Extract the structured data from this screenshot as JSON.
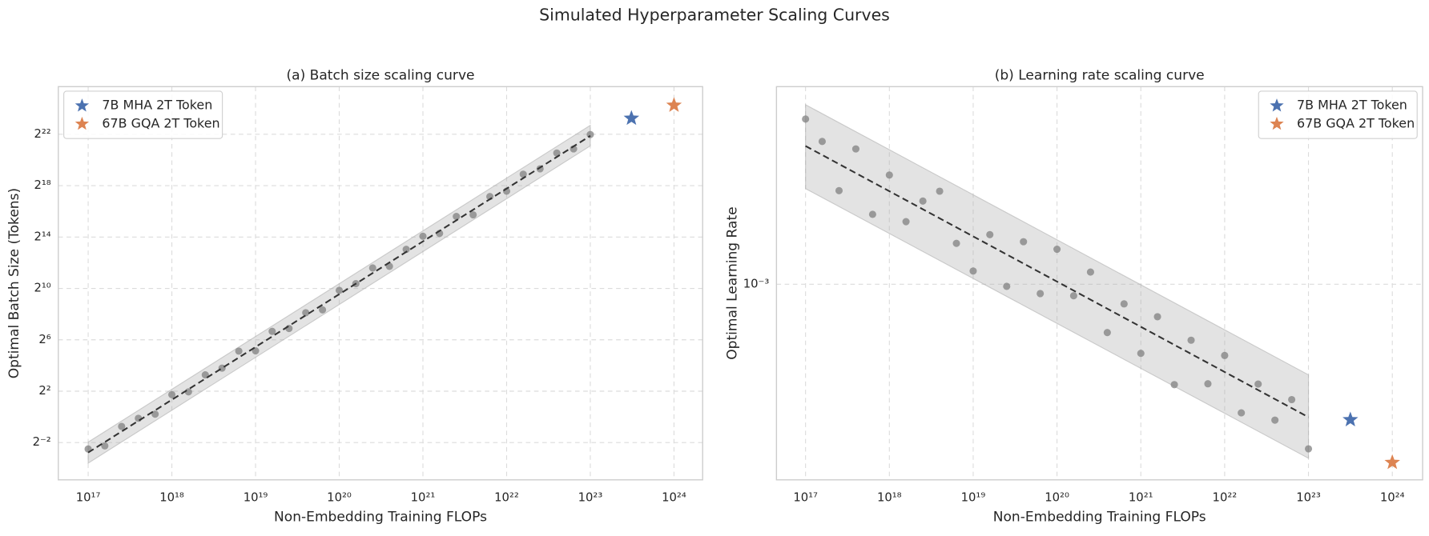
{
  "title": "Simulated Hyperparameter Scaling Curves",
  "chart_data": [
    {
      "type": "scatter",
      "title": "(a) Batch size scaling curve",
      "x_label": "Non-Embedding Training FLOPs",
      "y_label": "Optimal Batch Size (Tokens)",
      "xlog": true,
      "ylog": true,
      "grid": true,
      "legend": "upper left",
      "xlim": [
        4.4e+16,
        2.2e+24
      ],
      "ylim": [
        0.0335,
        54700000.0
      ],
      "xticks": [
        {
          "value": 1e+17,
          "label": "10¹⁷"
        },
        {
          "value": 1e+18,
          "label": "10¹⁸"
        },
        {
          "value": 1e+19,
          "label": "10¹⁹"
        },
        {
          "value": 1e+20,
          "label": "10²⁰"
        },
        {
          "value": 1e+21,
          "label": "10²¹"
        },
        {
          "value": 1e+22,
          "label": "10²²"
        },
        {
          "value": 1e+23,
          "label": "10²³"
        },
        {
          "value": 1e+24,
          "label": "10²⁴"
        }
      ],
      "yticks": [
        {
          "value": 0.25,
          "label": "2⁻²"
        },
        {
          "value": 4,
          "label": "2²"
        },
        {
          "value": 64,
          "label": "2⁶"
        },
        {
          "value": 1024,
          "label": "2¹⁰"
        },
        {
          "value": 16384,
          "label": "2¹⁴"
        },
        {
          "value": 262144,
          "label": "2¹⁸"
        },
        {
          "value": 4194304,
          "label": "2²²"
        }
      ],
      "points": {
        "color": "#808080",
        "x": [
          1e+17,
          1.58e+17,
          2.51e+17,
          3.98e+17,
          6.31e+17,
          1e+18,
          1.58e+18,
          2.51e+18,
          3.98e+18,
          6.31e+18,
          1e+19,
          1.58e+19,
          2.51e+19,
          3.98e+19,
          6.31e+19,
          1e+20,
          1.58e+20,
          2.51e+20,
          3.98e+20,
          6.31e+20,
          1e+21,
          1.58e+21,
          2.51e+21,
          3.98e+21,
          6.31e+21,
          1e+22,
          1.58e+22,
          2.51e+22,
          3.98e+22,
          6.31e+22,
          1e+23
        ],
        "y": [
          0.177,
          0.209,
          0.599,
          0.927,
          1.16,
          3.32,
          3.86,
          9.65,
          13.9,
          34.8,
          35.3,
          101,
          118,
          276,
          322,
          923,
          1323,
          3082,
          3373,
          8420,
          17080,
          19900,
          49670,
          54350,
          145300,
          194600,
          485800,
          650000,
          1524000,
          1902000,
          4130000
        ]
      },
      "fit": {
        "color": "#333333",
        "x": [
          1e+17,
          1e+23
        ],
        "y": [
          0.146,
          3850000
        ]
      },
      "band": {
        "color": "#b0b0b0",
        "x": [
          1e+17,
          1e+23
        ],
        "lower": [
          0.0825,
          2240000
        ],
        "upper": [
          0.257,
          6800000
        ]
      },
      "series": [
        {
          "name": "7B MHA 2T Token",
          "color": "#4c72b0",
          "x": [
            3.1e+23
          ],
          "y": [
            9900000
          ]
        },
        {
          "name": "67B GQA 2T Token",
          "color": "#dd8452",
          "x": [
            1e+24
          ],
          "y": [
            20000000
          ]
        }
      ]
    },
    {
      "type": "scatter",
      "title": "(b) Learning rate scaling curve",
      "x_label": "Non-Embedding Training FLOPs",
      "y_label": "Optimal Learning Rate",
      "xlog": true,
      "ylog": true,
      "grid": true,
      "legend": "upper right",
      "xlim": [
        4.5e+16,
        2.3e+24
      ],
      "ylim": [
        0.000187,
        0.00544
      ],
      "xticks": [
        {
          "value": 1e+17,
          "label": "10¹⁷"
        },
        {
          "value": 1e+18,
          "label": "10¹⁸"
        },
        {
          "value": 1e+19,
          "label": "10¹⁹"
        },
        {
          "value": 1e+20,
          "label": "10²⁰"
        },
        {
          "value": 1e+21,
          "label": "10²¹"
        },
        {
          "value": 1e+22,
          "label": "10²²"
        },
        {
          "value": 1e+23,
          "label": "10²³"
        },
        {
          "value": 1e+24,
          "label": "10²⁴"
        }
      ],
      "yticks": [
        {
          "value": 0.001,
          "label": "10⁻³"
        }
      ],
      "points": {
        "color": "#808080",
        "x": [
          1e+17,
          1.58e+17,
          2.51e+17,
          3.98e+17,
          6.31e+17,
          1e+18,
          1.58e+18,
          2.51e+18,
          3.98e+18,
          6.31e+18,
          1e+19,
          1.58e+19,
          2.51e+19,
          3.98e+19,
          6.31e+19,
          1e+20,
          1.58e+20,
          2.51e+20,
          3.98e+20,
          6.31e+20,
          1e+21,
          1.58e+21,
          2.51e+21,
          3.98e+21,
          6.31e+21,
          1e+22,
          1.58e+22,
          2.51e+22,
          3.98e+22,
          6.31e+22,
          1e+23
        ],
        "y": [
          0.00412,
          0.0034,
          0.00223,
          0.00319,
          0.00182,
          0.00255,
          0.00171,
          0.00204,
          0.00222,
          0.00142,
          0.00112,
          0.00153,
          0.000982,
          0.00144,
          0.000923,
          0.00135,
          0.000906,
          0.00111,
          0.000661,
          0.000845,
          0.000553,
          0.000757,
          0.000423,
          0.000619,
          0.000426,
          0.000543,
          0.000332,
          0.000425,
          0.000312,
          0.000372,
          0.000244
        ]
      },
      "fit": {
        "color": "#333333",
        "x": [
          1e+17,
          1e+23
        ],
        "y": [
          0.00327,
          0.00032
        ]
      },
      "band": {
        "color": "#b0b0b0",
        "x": [
          1e+17,
          1e+23
        ],
        "lower": [
          0.00227,
          0.000225
        ],
        "upper": [
          0.00466,
          0.00046
        ]
      },
      "series": [
        {
          "name": "7B MHA 2T Token",
          "color": "#4c72b0",
          "x": [
            3.16e+23
          ],
          "y": [
            0.000313
          ]
        },
        {
          "name": "67B GQA 2T Token",
          "color": "#dd8452",
          "x": [
            1e+24
          ],
          "y": [
            0.000217
          ]
        }
      ]
    }
  ]
}
